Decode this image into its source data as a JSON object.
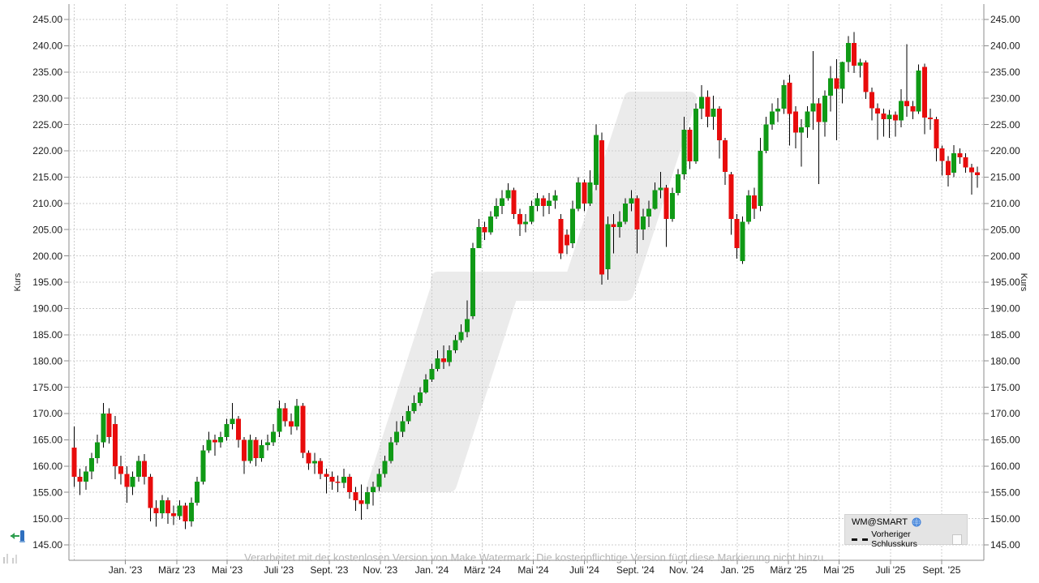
{
  "chart_data": {
    "type": "candlestick",
    "title": "",
    "y_axis": {
      "label": "Kurs",
      "min": 145,
      "max": 245,
      "step": 5,
      "decimals": 2,
      "sides": "both"
    },
    "x_axis": {
      "grid_leading_index": 0.05,
      "ticks": [
        {
          "i": 8.75,
          "label": "Jan. '23"
        },
        {
          "i": 17.5,
          "label": "März '23"
        },
        {
          "i": 26.1,
          "label": "Mai '23"
        },
        {
          "i": 34.9,
          "label": "Juli '23"
        },
        {
          "i": 43.5,
          "label": "Sept. '23"
        },
        {
          "i": 52.2,
          "label": "Nov. '23"
        },
        {
          "i": 61,
          "label": "Jan. '24"
        },
        {
          "i": 69.6,
          "label": "März '24"
        },
        {
          "i": 78.3,
          "label": "Mai '24"
        },
        {
          "i": 87,
          "label": "Juli '24"
        },
        {
          "i": 95.7,
          "label": "Sept. '24"
        },
        {
          "i": 104.4,
          "label": "Nov. '24"
        },
        {
          "i": 113.1,
          "label": "Jan. '25"
        },
        {
          "i": 121.8,
          "label": "März '25"
        },
        {
          "i": 130.4,
          "label": "Mai '25"
        },
        {
          "i": 139.2,
          "label": "Juli '25"
        },
        {
          "i": 147.9,
          "label": "Sept. '25"
        }
      ]
    },
    "legend": {
      "title": "WM@SMART",
      "globe_icon": "globe-icon",
      "item_label": "Vorheriger Schlusskurs"
    },
    "watermark_text": "Verarbeitet mit der kostenlosen Version von Make Watermark. Die kostenpflichtige Version fügt diese Markierung nicht hinzu.",
    "colors": {
      "up": "#109a16",
      "down": "#e80c0c",
      "wick": "#000000",
      "grid": "#cccccc",
      "border": "#8c8c8c",
      "text": "#1a1a1a",
      "watermark_logo": "#ebebeb",
      "watermark_text": "#b3b3b3",
      "legend_bg": "#e4e4e4",
      "globe": "#3b7dd8"
    },
    "grid": true,
    "legend_position": "bottom-right",
    "candles_format": [
      "open",
      "high",
      "low",
      "close"
    ],
    "candles": [
      [
        163.5,
        167.5,
        156,
        158
      ],
      [
        158,
        159.5,
        154.5,
        157
      ],
      [
        157,
        160,
        155.5,
        159
      ],
      [
        159,
        162.5,
        157.5,
        161.5
      ],
      [
        161.5,
        166,
        160.5,
        164.5
      ],
      [
        164.5,
        172,
        163.5,
        170
      ],
      [
        170,
        171,
        164.3,
        165.5
      ],
      [
        168,
        169.5,
        157.5,
        160
      ],
      [
        160,
        162,
        156.5,
        158.5
      ],
      [
        158.5,
        160,
        153,
        156
      ],
      [
        156,
        159,
        154.5,
        158
      ],
      [
        158,
        162,
        157,
        161
      ],
      [
        161,
        162.3,
        156.5,
        158
      ],
      [
        158,
        158.5,
        149.5,
        152
      ],
      [
        152,
        153.5,
        148.5,
        151
      ],
      [
        151,
        154.5,
        150,
        153.5
      ],
      [
        153.5,
        154,
        149,
        151
      ],
      [
        151,
        152.5,
        148.8,
        150.5
      ],
      [
        150.5,
        153.5,
        149.8,
        152.5
      ],
      [
        152.5,
        153,
        148,
        149.5
      ],
      [
        149.5,
        154,
        148.5,
        153
      ],
      [
        153,
        158,
        152.5,
        157
      ],
      [
        157,
        164,
        156.5,
        163
      ],
      [
        163,
        166.5,
        162.5,
        165
      ],
      [
        165,
        166,
        162,
        164.5
      ],
      [
        164.5,
        166.5,
        163.5,
        165.5
      ],
      [
        165.5,
        169,
        164.8,
        168
      ],
      [
        168,
        172,
        167,
        169
      ],
      [
        169,
        169.5,
        163.5,
        165
      ],
      [
        165,
        165.5,
        158.5,
        161
      ],
      [
        161,
        166,
        160.5,
        165
      ],
      [
        165,
        165.5,
        160,
        161.5
      ],
      [
        161.5,
        165,
        160.8,
        164
      ],
      [
        164,
        166,
        163,
        164.5
      ],
      [
        164.5,
        168,
        163.8,
        166.5
      ],
      [
        166.5,
        172.5,
        165.5,
        171
      ],
      [
        171,
        172,
        167.5,
        168.5
      ],
      [
        168.5,
        170,
        166,
        167.5
      ],
      [
        167.5,
        172.8,
        166.8,
        171.5
      ],
      [
        171.5,
        172,
        161.5,
        162.5
      ],
      [
        162.5,
        163,
        159.3,
        160.5
      ],
      [
        160.5,
        162.5,
        158.5,
        161
      ],
      [
        161,
        161.5,
        157.5,
        158.5
      ],
      [
        158.5,
        159.5,
        154.8,
        158
      ],
      [
        158,
        159,
        155.5,
        157
      ],
      [
        157,
        158.2,
        155,
        156.8
      ],
      [
        156.8,
        159.5,
        155.8,
        158
      ],
      [
        158,
        158.5,
        153.8,
        155
      ],
      [
        155,
        156,
        151.5,
        153.5
      ],
      [
        153.5,
        156.5,
        149.8,
        152.8
      ],
      [
        152.8,
        156,
        151.8,
        155
      ],
      [
        155,
        157,
        152.5,
        156
      ],
      [
        156,
        159.5,
        155.3,
        158.5
      ],
      [
        158.5,
        162,
        157.8,
        161
      ],
      [
        161,
        165.5,
        160.5,
        164.5
      ],
      [
        164.5,
        168.5,
        164,
        166.5
      ],
      [
        166.5,
        169.5,
        165.5,
        168.5
      ],
      [
        168.5,
        171.5,
        168,
        170.5
      ],
      [
        170.5,
        173.5,
        170,
        172
      ],
      [
        172,
        175,
        171.5,
        174
      ],
      [
        174,
        177.5,
        173.8,
        176.5
      ],
      [
        176.5,
        179.5,
        176,
        178.5
      ],
      [
        178.5,
        182,
        178,
        180.5
      ],
      [
        180.5,
        183,
        178.5,
        179.8
      ],
      [
        179.8,
        183,
        179,
        182
      ],
      [
        182,
        185,
        181.5,
        184
      ],
      [
        184,
        187,
        183.5,
        185.5
      ],
      [
        185.5,
        191.5,
        184.5,
        188
      ],
      [
        188.5,
        202.5,
        188,
        201.5
      ],
      [
        201.5,
        207,
        201.5,
        205.5
      ],
      [
        205.5,
        206.5,
        203,
        204.5
      ],
      [
        204.5,
        208.5,
        204,
        207.5
      ],
      [
        207.5,
        211,
        207,
        209.5
      ],
      [
        209.5,
        212.5,
        208,
        211
      ],
      [
        211,
        213.8,
        210.5,
        212.5
      ],
      [
        212.5,
        213,
        207,
        208
      ],
      [
        208,
        209,
        203.8,
        206
      ],
      [
        206,
        208,
        204.5,
        206.5
      ],
      [
        206.5,
        210.5,
        206,
        209.5
      ],
      [
        209.5,
        212,
        208.5,
        211
      ],
      [
        211,
        211.5,
        207.5,
        209.5
      ],
      [
        209.5,
        212,
        208,
        210.5
      ],
      [
        210.5,
        212.5,
        209,
        211.5
      ],
      [
        207,
        208,
        199.4,
        200.5
      ],
      [
        204,
        205,
        200.3,
        202
      ],
      [
        202.4,
        210.5,
        201.5,
        209
      ],
      [
        209,
        215,
        208.5,
        214
      ],
      [
        214,
        214.5,
        208.5,
        210
      ],
      [
        210,
        216.3,
        209.5,
        214
      ],
      [
        213.5,
        225,
        212.5,
        223
      ],
      [
        222,
        223.5,
        194.5,
        196.5
      ],
      [
        197.5,
        207.5,
        195.5,
        206
      ],
      [
        206,
        208,
        200.5,
        205.5
      ],
      [
        205.5,
        208.5,
        203.5,
        206.5
      ],
      [
        206.5,
        211,
        206,
        210
      ],
      [
        210,
        212.5,
        208.5,
        211
      ],
      [
        211,
        211.5,
        200.5,
        205
      ],
      [
        205,
        209,
        203,
        207.5
      ],
      [
        207.5,
        210.5,
        205.5,
        209
      ],
      [
        209,
        214,
        208.8,
        212.5
      ],
      [
        212.5,
        216,
        211,
        213
      ],
      [
        213,
        213.5,
        201.7,
        207
      ],
      [
        207,
        213,
        206.5,
        212
      ],
      [
        212,
        216.5,
        211.5,
        215.5
      ],
      [
        215.5,
        226.5,
        214.5,
        224
      ],
      [
        224,
        224.5,
        216.5,
        218
      ],
      [
        218,
        229,
        217.5,
        228
      ],
      [
        228,
        232.5,
        226,
        230.3
      ],
      [
        230.3,
        231.5,
        224.5,
        226.5
      ],
      [
        226.5,
        230.5,
        224,
        228
      ],
      [
        228,
        228.5,
        218.5,
        222
      ],
      [
        222,
        222.5,
        213.5,
        216
      ],
      [
        215.5,
        216,
        204,
        207
      ],
      [
        207,
        208,
        199.5,
        201.5
      ],
      [
        199,
        207.5,
        198.5,
        206.5
      ],
      [
        206.5,
        212.5,
        206,
        211.5
      ],
      [
        211.5,
        213,
        207,
        209
      ],
      [
        209.5,
        222.5,
        208.5,
        220
      ],
      [
        220,
        226.5,
        219.5,
        225
      ],
      [
        225,
        229,
        224,
        227.5
      ],
      [
        227.5,
        230,
        225.5,
        228
      ],
      [
        228,
        233.5,
        227,
        232.5
      ],
      [
        233,
        234.5,
        221,
        227
      ],
      [
        227.5,
        228.5,
        220.5,
        223.5
      ],
      [
        223.5,
        226,
        217,
        224.5
      ],
      [
        224.5,
        228.5,
        222.5,
        227.5
      ],
      [
        227.5,
        239,
        224,
        229
      ],
      [
        229,
        230,
        213.7,
        225.5
      ],
      [
        225.5,
        231.5,
        222.7,
        230.5
      ],
      [
        230.5,
        236.1,
        227.5,
        233.8
      ],
      [
        233.8,
        237.4,
        222,
        231.8
      ],
      [
        231.8,
        237,
        229,
        236.9
      ],
      [
        236.9,
        241.8,
        235,
        240.5
      ],
      [
        240.5,
        242.6,
        234.8,
        236.2
      ],
      [
        236.2,
        237.5,
        234,
        236.8
      ],
      [
        236.8,
        237.2,
        229.9,
        231.2
      ],
      [
        231.2,
        232,
        225.8,
        228.1
      ],
      [
        228.1,
        229,
        222.1,
        227.1
      ],
      [
        227.1,
        228,
        222.7,
        226
      ],
      [
        226,
        227.8,
        222.5,
        226.9
      ],
      [
        226.9,
        227.5,
        222.7,
        225.8
      ],
      [
        225.8,
        231.7,
        224.5,
        229.5
      ],
      [
        229.5,
        240.3,
        226.5,
        228.5
      ],
      [
        228.5,
        229.5,
        226,
        227.5
      ],
      [
        227.5,
        236.4,
        227,
        235.3
      ],
      [
        236,
        236.6,
        223.2,
        226.3
      ],
      [
        226.3,
        228,
        224,
        226
      ],
      [
        226,
        226.5,
        218,
        220.5
      ],
      [
        220.5,
        221,
        215.3,
        218.1
      ],
      [
        218.1,
        219,
        213.2,
        215.4
      ],
      [
        215.8,
        221.1,
        215,
        219.5
      ],
      [
        219.5,
        220.5,
        217.5,
        218.8
      ],
      [
        218.8,
        219.5,
        215.8,
        216.8
      ],
      [
        216.8,
        217.5,
        211.7,
        215.9
      ],
      [
        215.9,
        217,
        213,
        215.4
      ]
    ]
  }
}
